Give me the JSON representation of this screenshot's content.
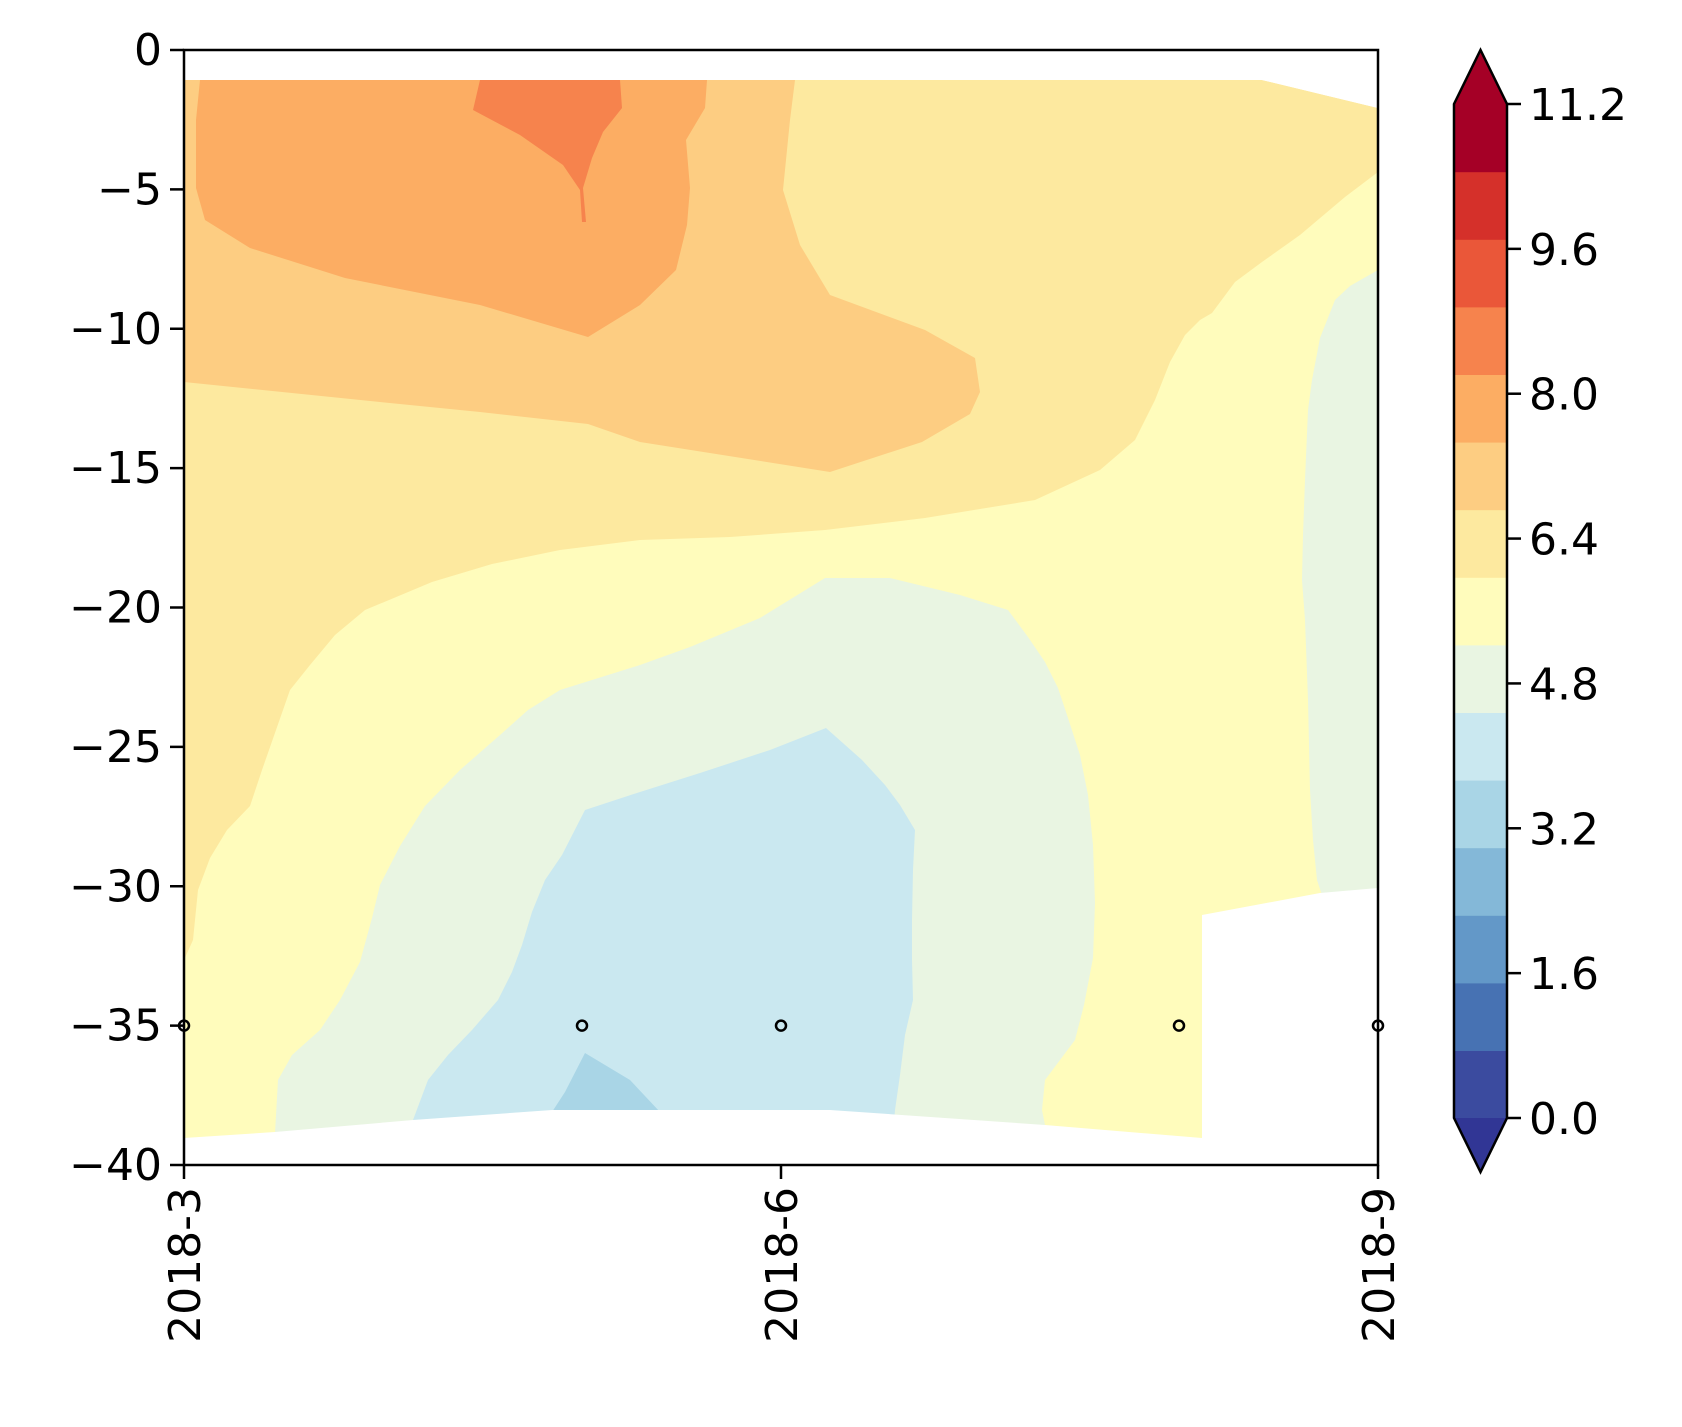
{
  "chart_data": {
    "type": "heatmap",
    "title": "",
    "xlabel": "",
    "ylabel": "",
    "x_ticks": [
      "2018-3",
      "2018-6",
      "2018-9"
    ],
    "y_ticks": [
      "0",
      "−5",
      "−10",
      "−15",
      "−20",
      "−25",
      "−30",
      "−35",
      "−40"
    ],
    "ylim": [
      -40,
      0
    ],
    "xlim": [
      "2018-3",
      "2018-9"
    ],
    "colorbar": {
      "min": 0.0,
      "max": 11.2,
      "step": 0.8,
      "extend": "both",
      "tick_labels": [
        "0.0",
        "1.6",
        "3.2",
        "4.8",
        "6.4",
        "8.0",
        "9.6",
        "11.2"
      ],
      "colors": [
        "#3b4b9f",
        "#4772b3",
        "#6398c8",
        "#84b8d8",
        "#a9d5e6",
        "#cae8f0",
        "#e9f5e2",
        "#fffcbc",
        "#fde99f",
        "#fdcd82",
        "#fcad63",
        "#f6834d",
        "#ea5739",
        "#d5302a",
        "#a50026"
      ],
      "under_color": "#313695",
      "over_color": "#a50026"
    },
    "regions": [
      {
        "level": "6.4-7.2",
        "color": "#fde99f"
      },
      {
        "level": "7.2-8.0",
        "color": "#fdcd82"
      },
      {
        "level": "8.0-8.8",
        "color": "#fcad63"
      },
      {
        "level": "8.8-9.6",
        "color": "#f6834d"
      },
      {
        "level": "5.6-6.4",
        "color": "#fffcbc"
      },
      {
        "level": "4.8-5.6",
        "color": "#e9f5e2"
      },
      {
        "level": "4.0-4.8",
        "color": "#cae8f0"
      },
      {
        "level": "3.2-4.0",
        "color": "#a9d5e6"
      }
    ],
    "sample_points": [
      {
        "x": "2018-3",
        "y": -35
      },
      {
        "x": "2018-5",
        "y": -35
      },
      {
        "x": "2018-6",
        "y": -35
      },
      {
        "x": "2018-8",
        "y": -35
      },
      {
        "x": "2018-9",
        "y": -35
      }
    ]
  }
}
